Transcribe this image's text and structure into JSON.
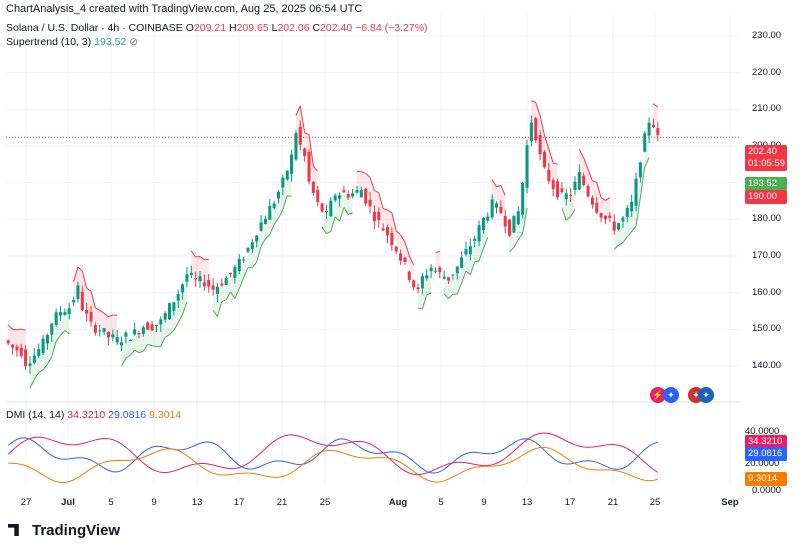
{
  "header": {
    "created": "ChartAnalysis_4 created with TradingView.com, Aug 25, 2025 06:54 UTC",
    "symbol": "Solana / U.S. Dollar · 4h · COINBASE",
    "o_label": "O",
    "o_value": "209.21",
    "h_label": "H",
    "h_value": "209.65",
    "l_label": "L",
    "l_value": "202.06",
    "c_label": "C",
    "c_value": "202.40",
    "change": "−6.84 (−3.27%)"
  },
  "supertrend": {
    "label": "Supertrend (10, 3)",
    "value": "193.52"
  },
  "dmi": {
    "label": "DMI (14, 14)",
    "adx": "34.3210",
    "plus": "29.0816",
    "minus": "9.3014"
  },
  "price_badges": {
    "last": "202.40",
    "countdown": "01:05:59",
    "st_up": "193.52",
    "st_down": "190.00"
  },
  "dmi_badges": {
    "adx": "34.3210",
    "plus": "29.0816",
    "minus": "9.3014",
    "zero": "0.0000"
  },
  "dmi_axis": [
    "40.0000",
    "20.0000"
  ],
  "brand": {
    "name": "TradingView"
  },
  "colors": {
    "up": "#089981",
    "down": "#f23645",
    "st_up": "#4caf50",
    "st_down": "#f23645",
    "adx": "#e91e63",
    "plus": "#2962ff",
    "minus": "#f57c00"
  },
  "chart_data": {
    "type": "candlestick",
    "yticks": [
      "230.00",
      "220.00",
      "210.00",
      "200.00",
      "190.00",
      "180.00",
      "170.00",
      "160.00",
      "150.00",
      "140.00"
    ],
    "ylim": [
      134,
      236
    ],
    "xticks": [
      {
        "label": "27",
        "bold": false
      },
      {
        "label": "Jul",
        "bold": true
      },
      {
        "label": "5",
        "bold": false
      },
      {
        "label": "9",
        "bold": false
      },
      {
        "label": "13",
        "bold": false
      },
      {
        "label": "17",
        "bold": false
      },
      {
        "label": "21",
        "bold": false
      },
      {
        "label": "25",
        "bold": false
      },
      {
        "label": "Aug",
        "bold": true
      },
      {
        "label": "5",
        "bold": false
      },
      {
        "label": "9",
        "bold": false
      },
      {
        "label": "13",
        "bold": false
      },
      {
        "label": "17",
        "bold": false
      },
      {
        "label": "21",
        "bold": false
      },
      {
        "label": "25",
        "bold": false
      },
      {
        "label": "Sep",
        "bold": true
      }
    ],
    "price_path": [
      [
        0,
        147
      ],
      [
        2,
        145
      ],
      [
        4,
        144
      ],
      [
        5,
        141
      ],
      [
        7,
        143
      ],
      [
        9,
        146
      ],
      [
        11,
        152
      ],
      [
        13,
        155
      ],
      [
        15,
        156
      ],
      [
        17,
        161
      ],
      [
        18,
        156
      ],
      [
        20,
        151
      ],
      [
        22,
        150
      ],
      [
        24,
        148
      ],
      [
        26,
        147
      ],
      [
        28,
        148
      ],
      [
        30,
        149
      ],
      [
        32,
        151
      ],
      [
        34,
        151
      ],
      [
        36,
        152
      ],
      [
        38,
        156
      ],
      [
        40,
        160
      ],
      [
        42,
        165
      ],
      [
        44,
        163
      ],
      [
        46,
        163
      ],
      [
        48,
        161
      ],
      [
        50,
        163
      ],
      [
        52,
        165
      ],
      [
        54,
        168
      ],
      [
        56,
        172
      ],
      [
        58,
        177
      ],
      [
        60,
        181
      ],
      [
        62,
        185
      ],
      [
        64,
        190
      ],
      [
        66,
        197
      ],
      [
        67,
        204
      ],
      [
        68,
        200
      ],
      [
        69,
        197
      ],
      [
        70,
        190
      ],
      [
        72,
        184
      ],
      [
        74,
        181
      ],
      [
        76,
        187
      ],
      [
        78,
        187
      ],
      [
        80,
        187
      ],
      [
        82,
        188
      ],
      [
        84,
        183
      ],
      [
        86,
        179
      ],
      [
        88,
        176
      ],
      [
        90,
        172
      ],
      [
        92,
        167
      ],
      [
        94,
        162
      ],
      [
        95,
        160
      ],
      [
        96,
        164
      ],
      [
        98,
        167
      ],
      [
        100,
        165
      ],
      [
        102,
        164
      ],
      [
        104,
        167
      ],
      [
        106,
        171
      ],
      [
        108,
        175
      ],
      [
        110,
        180
      ],
      [
        112,
        184
      ],
      [
        114,
        182
      ],
      [
        116,
        177
      ],
      [
        118,
        182
      ],
      [
        119,
        190
      ],
      [
        120,
        200
      ],
      [
        121,
        207
      ],
      [
        122,
        203
      ],
      [
        123,
        197
      ],
      [
        124,
        193
      ],
      [
        126,
        189
      ],
      [
        128,
        186
      ],
      [
        130,
        187
      ],
      [
        132,
        192
      ],
      [
        134,
        187
      ],
      [
        136,
        183
      ],
      [
        138,
        180
      ],
      [
        140,
        178
      ],
      [
        142,
        180
      ],
      [
        144,
        184
      ],
      [
        145,
        190
      ],
      [
        146,
        197
      ],
      [
        147,
        202
      ],
      [
        148,
        207
      ],
      [
        149,
        206
      ],
      [
        150,
        202
      ]
    ],
    "n_bars": 150,
    "dmi_ylim": [
      0,
      55
    ]
  }
}
